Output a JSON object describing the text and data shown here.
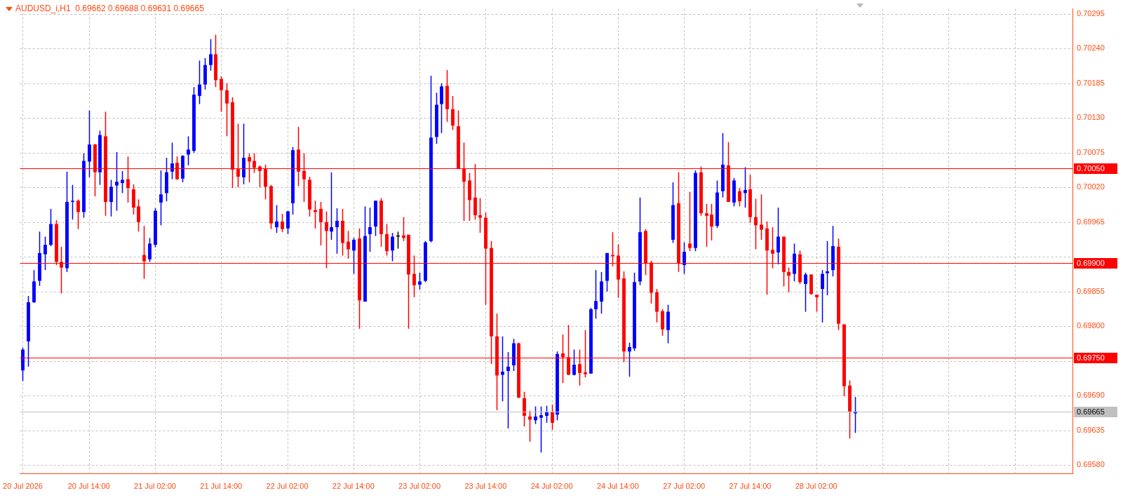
{
  "chart_data": {
    "type": "candlestick",
    "title": "AUDUSD_i,H1  0.69662 0.69688 0.69631 0.69665",
    "categories": [
      "20 Jul 2026",
      null,
      null,
      null,
      null,
      null,
      null,
      null,
      null,
      null,
      null,
      null,
      "20 Jul 14:00",
      null,
      null,
      null,
      null,
      null,
      null,
      null,
      null,
      null,
      null,
      null,
      "21 Jul 02:00",
      null,
      null,
      null,
      null,
      null,
      null,
      null,
      null,
      null,
      null,
      null,
      "21 Jul 14:00",
      null,
      null,
      null,
      null,
      null,
      null,
      null,
      null,
      null,
      null,
      null,
      "22 Jul 02:00",
      null,
      null,
      null,
      null,
      null,
      null,
      null,
      null,
      null,
      null,
      null,
      "22 Jul 14:00",
      null,
      null,
      null,
      null,
      null,
      null,
      null,
      null,
      null,
      null,
      null,
      "23 Jul 02:00",
      null,
      null,
      null,
      null,
      null,
      null,
      null,
      null,
      null,
      null,
      null,
      "23 Jul 14:00",
      null,
      null,
      null,
      null,
      null,
      null,
      null,
      null,
      null,
      null,
      null,
      "24 Jul 02:00",
      null,
      null,
      null,
      null,
      null,
      null,
      null,
      null,
      null,
      null,
      null,
      "24 Jul 14:00",
      null,
      null,
      null,
      null,
      null,
      null,
      null,
      null,
      null,
      null,
      null,
      "27 Jul 02:00",
      null,
      null,
      null,
      null,
      null,
      null,
      null,
      null,
      null,
      null,
      null,
      "27 Jul 14:00",
      null,
      null,
      null,
      null,
      null,
      null,
      null,
      null,
      null,
      null,
      null,
      "28 Jul 02:00",
      null,
      null,
      null,
      null,
      null,
      null,
      null,
      null,
      null,
      null,
      null,
      null,
      null,
      null,
      null,
      null,
      null,
      null,
      null,
      null,
      null,
      null,
      null,
      null,
      null,
      null,
      null,
      null,
      null,
      null,
      null,
      null,
      null,
      null,
      null,
      null,
      null,
      null,
      null,
      null,
      null,
      null,
      null,
      null,
      null,
      null
    ],
    "ohlc": [
      [
        0.6973,
        0.69766,
        0.69713,
        0.69763
      ],
      [
        0.69776,
        0.69848,
        0.69736,
        0.69838
      ],
      [
        0.69838,
        0.69889,
        0.69837,
        0.69871
      ],
      [
        0.69872,
        0.6995,
        0.69864,
        0.69916
      ],
      [
        0.69914,
        0.69942,
        0.69889,
        0.69929
      ],
      [
        0.69929,
        0.69986,
        0.69927,
        0.69962
      ],
      [
        0.69962,
        0.69968,
        0.69897,
        0.69902
      ],
      [
        0.69902,
        0.69926,
        0.69852,
        0.69893
      ],
      [
        0.69892,
        0.70045,
        0.69886,
        0.69997
      ],
      [
        0.69997,
        0.70024,
        0.69969,
        0.69998
      ],
      [
        0.69999,
        0.70001,
        0.69954,
        0.69981
      ],
      [
        0.69981,
        0.70074,
        0.69972,
        0.70062
      ],
      [
        0.70061,
        0.70142,
        0.70036,
        0.70088
      ],
      [
        0.70088,
        0.70089,
        0.70006,
        0.70044
      ],
      [
        0.70044,
        0.7011,
        0.70024,
        0.70103
      ],
      [
        0.70101,
        0.7014,
        0.69975,
        0.69997
      ],
      [
        0.69997,
        0.70032,
        0.69974,
        0.70021
      ],
      [
        0.70023,
        0.70076,
        0.69983,
        0.70029
      ],
      [
        0.70027,
        0.70046,
        0.70011,
        0.70032
      ],
      [
        0.70033,
        0.70069,
        0.69996,
        0.70019
      ],
      [
        0.70017,
        0.70025,
        0.69977,
        0.69988
      ],
      [
        0.6999,
        0.70001,
        0.6995,
        0.69965
      ],
      [
        0.69913,
        0.69959,
        0.69875,
        0.69903
      ],
      [
        0.69906,
        0.6994,
        0.69902,
        0.69931
      ],
      [
        0.69929,
        0.69987,
        0.69925,
        0.69983
      ],
      [
        0.69996,
        0.70047,
        0.6996,
        0.70009
      ],
      [
        0.70011,
        0.70067,
        0.69998,
        0.70044
      ],
      [
        0.70045,
        0.70091,
        0.70033,
        0.70058
      ],
      [
        0.70059,
        0.70069,
        0.70032,
        0.70033
      ],
      [
        0.70034,
        0.70071,
        0.70028,
        0.7007
      ],
      [
        0.70072,
        0.70101,
        0.70055,
        0.7008
      ],
      [
        0.70078,
        0.70179,
        0.70075,
        0.70167
      ],
      [
        0.70165,
        0.70221,
        0.70152,
        0.70183
      ],
      [
        0.70183,
        0.70225,
        0.70175,
        0.70214
      ],
      [
        0.70214,
        0.70255,
        0.70205,
        0.70231
      ],
      [
        0.70231,
        0.70262,
        0.70179,
        0.7019
      ],
      [
        0.70192,
        0.70196,
        0.7014,
        0.70174
      ],
      [
        0.70174,
        0.70185,
        0.70101,
        0.70153
      ],
      [
        0.70155,
        0.70163,
        0.70019,
        0.70048
      ],
      [
        0.70049,
        0.70121,
        0.7002,
        0.70037
      ],
      [
        0.70036,
        0.70121,
        0.70025,
        0.70067
      ],
      [
        0.70068,
        0.70074,
        0.70028,
        0.70061
      ],
      [
        0.70062,
        0.70074,
        0.70043,
        0.70051
      ],
      [
        0.70053,
        0.70055,
        0.7002,
        0.70046
      ],
      [
        0.70049,
        0.70056,
        0.70001,
        0.70021
      ],
      [
        0.70022,
        0.70024,
        0.69954,
        0.69963
      ],
      [
        0.69957,
        0.69992,
        0.69948,
        0.69966
      ],
      [
        0.69966,
        0.69978,
        0.69949,
        0.69954
      ],
      [
        0.69955,
        0.69983,
        0.69946,
        0.69982
      ],
      [
        0.69995,
        0.70084,
        0.69977,
        0.70079
      ],
      [
        0.7008,
        0.70116,
        0.70022,
        0.70045
      ],
      [
        0.70046,
        0.70074,
        0.69997,
        0.70033
      ],
      [
        0.70032,
        0.70037,
        0.69974,
        0.69985
      ],
      [
        0.69984,
        0.69999,
        0.69955,
        0.69981
      ],
      [
        0.69986,
        0.69997,
        0.69928,
        0.69965
      ],
      [
        0.69965,
        0.69982,
        0.69892,
        0.69951
      ],
      [
        0.6995,
        0.70044,
        0.69937,
        0.69957
      ],
      [
        0.69957,
        0.69987,
        0.69915,
        0.69967
      ],
      [
        0.69967,
        0.69986,
        0.69912,
        0.69932
      ],
      [
        0.69934,
        0.69951,
        0.69907,
        0.69922
      ],
      [
        0.6992,
        0.6994,
        0.69883,
        0.69937
      ],
      [
        0.69939,
        0.69955,
        0.69796,
        0.69841
      ],
      [
        0.69839,
        0.6999,
        0.69839,
        0.69943
      ],
      [
        0.69946,
        0.69988,
        0.69918,
        0.69957
      ],
      [
        0.69958,
        0.69999,
        0.69943,
        0.69999
      ],
      [
        0.69999,
        0.70003,
        0.69926,
        0.69946
      ],
      [
        0.69946,
        0.69962,
        0.69912,
        0.69919
      ],
      [
        0.6992,
        0.69948,
        0.69903,
        0.69942
      ],
      [
        0.69943,
        0.6995,
        0.69923,
        0.69943
      ],
      [
        0.69944,
        0.69973,
        0.69935,
        0.6994
      ],
      [
        0.69945,
        0.69945,
        0.69796,
        0.69882
      ],
      [
        0.69883,
        0.69912,
        0.69846,
        0.69865
      ],
      [
        0.69866,
        0.69885,
        0.69858,
        0.69871
      ],
      [
        0.69872,
        0.69935,
        0.6987,
        0.69933
      ],
      [
        0.69935,
        0.70197,
        0.69933,
        0.70099
      ],
      [
        0.701,
        0.7017,
        0.70089,
        0.70151
      ],
      [
        0.70152,
        0.70185,
        0.70106,
        0.7018
      ],
      [
        0.70181,
        0.70206,
        0.70124,
        0.70144
      ],
      [
        0.70144,
        0.70165,
        0.70111,
        0.70118
      ],
      [
        0.70117,
        0.70142,
        0.7005,
        0.7005
      ],
      [
        0.7005,
        0.70091,
        0.69967,
        0.70029
      ],
      [
        0.70031,
        0.70043,
        0.69967,
        0.7
      ],
      [
        0.70004,
        0.70057,
        0.69969,
        0.69976
      ],
      [
        0.69976,
        0.70003,
        0.69948,
        0.69972
      ],
      [
        0.69972,
        0.6998,
        0.69834,
        0.69923
      ],
      [
        0.69924,
        0.69935,
        0.6974,
        0.69784
      ],
      [
        0.69784,
        0.6982,
        0.69667,
        0.69722
      ],
      [
        0.69723,
        0.69784,
        0.69681,
        0.69728
      ],
      [
        0.69729,
        0.69759,
        0.69638,
        0.69736
      ],
      [
        0.69738,
        0.6978,
        0.69729,
        0.69773
      ],
      [
        0.69773,
        0.69774,
        0.69686,
        0.69687
      ],
      [
        0.69686,
        0.69696,
        0.69641,
        0.69658
      ],
      [
        0.69657,
        0.69666,
        0.69617,
        0.69652
      ],
      [
        0.69651,
        0.69673,
        0.69645,
        0.69657
      ],
      [
        0.69655,
        0.69673,
        0.696,
        0.69659
      ],
      [
        0.69658,
        0.69674,
        0.69647,
        0.69664
      ],
      [
        0.69664,
        0.69676,
        0.69636,
        0.69647
      ],
      [
        0.6966,
        0.6976,
        0.69651,
        0.69756
      ],
      [
        0.69757,
        0.69787,
        0.6971,
        0.69751
      ],
      [
        0.69751,
        0.69802,
        0.69723,
        0.69723
      ],
      [
        0.69723,
        0.69763,
        0.69722,
        0.69739
      ],
      [
        0.6974,
        0.69763,
        0.69706,
        0.69726
      ],
      [
        0.69727,
        0.69794,
        0.69719,
        0.69724
      ],
      [
        0.69725,
        0.69829,
        0.69725,
        0.69827
      ],
      [
        0.69827,
        0.69889,
        0.69812,
        0.6984
      ],
      [
        0.69839,
        0.69886,
        0.6982,
        0.69871
      ],
      [
        0.69872,
        0.69916,
        0.69855,
        0.69916
      ],
      [
        0.69913,
        0.69949,
        0.69895,
        0.69911
      ],
      [
        0.69912,
        0.6993,
        0.69845,
        0.69874
      ],
      [
        0.69876,
        0.69887,
        0.69743,
        0.6976
      ],
      [
        0.6976,
        0.69774,
        0.6972,
        0.69767
      ],
      [
        0.69765,
        0.69885,
        0.69761,
        0.6987
      ],
      [
        0.69871,
        0.70004,
        0.69865,
        0.69949
      ],
      [
        0.69951,
        0.69954,
        0.69881,
        0.69899
      ],
      [
        0.69901,
        0.69904,
        0.69836,
        0.69853
      ],
      [
        0.69854,
        0.69859,
        0.69806,
        0.69823
      ],
      [
        0.69824,
        0.69827,
        0.69785,
        0.69795
      ],
      [
        0.69794,
        0.69834,
        0.69773,
        0.69823
      ],
      [
        0.69937,
        0.70028,
        0.69932,
        0.69992
      ],
      [
        0.69995,
        0.70044,
        0.69886,
        0.69899
      ],
      [
        0.69897,
        0.69933,
        0.69883,
        0.69918
      ],
      [
        0.69931,
        0.70013,
        0.69919,
        0.69924
      ],
      [
        0.69924,
        0.70047,
        0.69919,
        0.70043
      ],
      [
        0.70044,
        0.70053,
        0.69975,
        0.69979
      ],
      [
        0.69979,
        0.69994,
        0.69926,
        0.69975
      ],
      [
        0.69977,
        0.69994,
        0.69936,
        0.69958
      ],
      [
        0.69959,
        0.70031,
        0.69956,
        0.70012
      ],
      [
        0.70014,
        0.70106,
        0.70004,
        0.70056
      ],
      [
        0.70055,
        0.70092,
        0.69997,
        0.69997
      ],
      [
        0.69996,
        0.70035,
        0.6999,
        0.70031
      ],
      [
        0.70014,
        0.70019,
        0.6999,
        0.69998
      ],
      [
        0.70011,
        0.70052,
        0.69988,
        0.70016
      ],
      [
        0.70017,
        0.7004,
        0.69964,
        0.69973
      ],
      [
        0.69973,
        0.70002,
        0.69922,
        0.6996
      ],
      [
        0.69961,
        0.70009,
        0.69937,
        0.69953
      ],
      [
        0.69955,
        0.69966,
        0.6985,
        0.6992
      ],
      [
        0.69921,
        0.69957,
        0.69892,
        0.69915
      ],
      [
        0.69917,
        0.69988,
        0.69898,
        0.69942
      ],
      [
        0.69942,
        0.69942,
        0.69863,
        0.69886
      ],
      [
        0.69886,
        0.69893,
        0.69854,
        0.6988
      ],
      [
        0.69883,
        0.69931,
        0.69871,
        0.69915
      ],
      [
        0.69914,
        0.6992,
        0.69867,
        0.6987
      ],
      [
        0.69867,
        0.69885,
        0.69823,
        0.69882
      ],
      [
        0.69882,
        0.69882,
        0.6985,
        0.69851
      ],
      [
        0.6985,
        0.6985,
        0.69823,
        0.69846
      ],
      [
        0.69859,
        0.69889,
        0.69806,
        0.69883
      ],
      [
        0.69884,
        0.69935,
        0.69849,
        0.69887
      ],
      [
        0.69889,
        0.69959,
        0.69879,
        0.69927
      ],
      [
        0.69926,
        0.69939,
        0.69794,
        0.69804
      ],
      [
        0.69803,
        0.69803,
        0.69689,
        0.69705
      ],
      [
        0.69706,
        0.69714,
        0.69622,
        0.69665
      ],
      [
        0.69662,
        0.69688,
        0.69631,
        0.69665
      ],
      null,
      null,
      null,
      null,
      null,
      null,
      null,
      null,
      null,
      null,
      null,
      null,
      null,
      null,
      null,
      null,
      null,
      null,
      null,
      null,
      null,
      null,
      null,
      null,
      null,
      null,
      null,
      null,
      null,
      null,
      null,
      null,
      null,
      null,
      null,
      null,
      null,
      null,
      null
    ],
    "colors": [
      "#0000ff",
      "#0000ff",
      "#0000ff",
      "#0000ff",
      "#0000ff",
      "#0000ff",
      "#ff0000",
      "#ff0000",
      "#0000ff",
      "#0000ff",
      "#ff0000",
      "#0000ff",
      "#0000ff",
      "#ff0000",
      "#0000ff",
      "#ff0000",
      "#0000ff",
      "#0000ff",
      "#0000ff",
      "#ff0000",
      "#ff0000",
      "#ff0000",
      "#ff0000",
      "#0000ff",
      "#0000ff",
      "#0000ff",
      "#0000ff",
      "#0000ff",
      "#ff0000",
      "#0000ff",
      "#0000ff",
      "#0000ff",
      "#0000ff",
      "#0000ff",
      "#0000ff",
      "#ff0000",
      "#ff0000",
      "#ff0000",
      "#ff0000",
      "#ff0000",
      "#0000ff",
      "#ff0000",
      "#ff0000",
      "#ff0000",
      "#ff0000",
      "#ff0000",
      "#0000ff",
      "#ff0000",
      "#0000ff",
      "#0000ff",
      "#ff0000",
      "#ff0000",
      "#ff0000",
      "#ff0000",
      "#ff0000",
      "#ff0000",
      "#0000ff",
      "#0000ff",
      "#ff0000",
      "#ff0000",
      "#0000ff",
      "#ff0000",
      "#0000ff",
      "#0000ff",
      "#0000ff",
      "#ff0000",
      "#ff0000",
      "#0000ff",
      "#000000",
      "#ff0000",
      "#ff0000",
      "#ff0000",
      "#0000ff",
      "#0000ff",
      "#0000ff",
      "#0000ff",
      "#0000ff",
      "#ff0000",
      "#ff0000",
      "#ff0000",
      "#ff0000",
      "#ff0000",
      "#ff0000",
      "#ff0000",
      "#ff0000",
      "#ff0000",
      "#ff0000",
      "#0000ff",
      "#0000ff",
      "#0000ff",
      "#ff0000",
      "#ff0000",
      "#ff0000",
      "#0000ff",
      "#0000ff",
      "#0000ff",
      "#ff0000",
      "#0000ff",
      "#ff0000",
      "#ff0000",
      "#0000ff",
      "#ff0000",
      "#ff0000",
      "#0000ff",
      "#0000ff",
      "#0000ff",
      "#0000ff",
      "#ff0000",
      "#ff0000",
      "#ff0000",
      "#0000ff",
      "#0000ff",
      "#0000ff",
      "#ff0000",
      "#ff0000",
      "#ff0000",
      "#ff0000",
      "#0000ff",
      "#0000ff",
      "#ff0000",
      "#0000ff",
      "#ff0000",
      "#0000ff",
      "#ff0000",
      "#ff0000",
      "#ff0000",
      "#0000ff",
      "#0000ff",
      "#ff0000",
      "#0000ff",
      "#ff0000",
      "#0000ff",
      "#ff0000",
      "#ff0000",
      "#ff0000",
      "#ff0000",
      "#ff0000",
      "#0000ff",
      "#ff0000",
      "#ff0000",
      "#0000ff",
      "#ff0000",
      "#0000ff",
      "#ff0000",
      "#ff0000",
      "#0000ff",
      "#0000ff",
      "#0000ff",
      "#ff0000",
      "#ff0000",
      "#ff0000",
      "#0000ff",
      null,
      null,
      null,
      null,
      null,
      null,
      null,
      null,
      null,
      null,
      null,
      null,
      null,
      null,
      null,
      null,
      null,
      null,
      null,
      null,
      null,
      null,
      null,
      null,
      null,
      null,
      null,
      null,
      null,
      null,
      null,
      null,
      null,
      null,
      null,
      null,
      null,
      null,
      null
    ],
    "ylim": [
      0.69566,
      0.70303
    ],
    "yticks": [
      {
        "value": 0.70295,
        "label": "0.70295"
      },
      {
        "value": 0.7024,
        "label": "0.70240"
      },
      {
        "value": 0.70185,
        "label": "0.70185"
      },
      {
        "value": 0.7013,
        "label": "0.70130"
      },
      {
        "value": 0.70075,
        "label": "0.70075"
      },
      {
        "value": 0.7002,
        "label": "0.70020"
      },
      {
        "value": 0.69965,
        "label": "0.69965"
      },
      {
        "value": 0.6991,
        "label": null
      },
      {
        "value": 0.69855,
        "label": "0.69855"
      },
      {
        "value": 0.698,
        "label": "0.69800"
      },
      {
        "value": 0.69745,
        "label": null
      },
      {
        "value": 0.6969,
        "label": "0.69690"
      },
      {
        "value": 0.69635,
        "label": "0.69635"
      },
      {
        "value": 0.6958,
        "label": "0.69580"
      }
    ],
    "ref_lines": [
      {
        "axis": "y",
        "value": 0.7005,
        "label": "0.70050",
        "color": "#ff0000"
      },
      {
        "axis": "y",
        "value": 0.699,
        "label": "0.69900",
        "color": "#ff0000"
      },
      {
        "axis": "y",
        "value": 0.6975,
        "label": "0.69750",
        "color": "#ff0000"
      },
      {
        "axis": "y",
        "value": 0.69665,
        "label": "0.69665",
        "color": "#c0c0c0"
      }
    ],
    "grid": true
  }
}
